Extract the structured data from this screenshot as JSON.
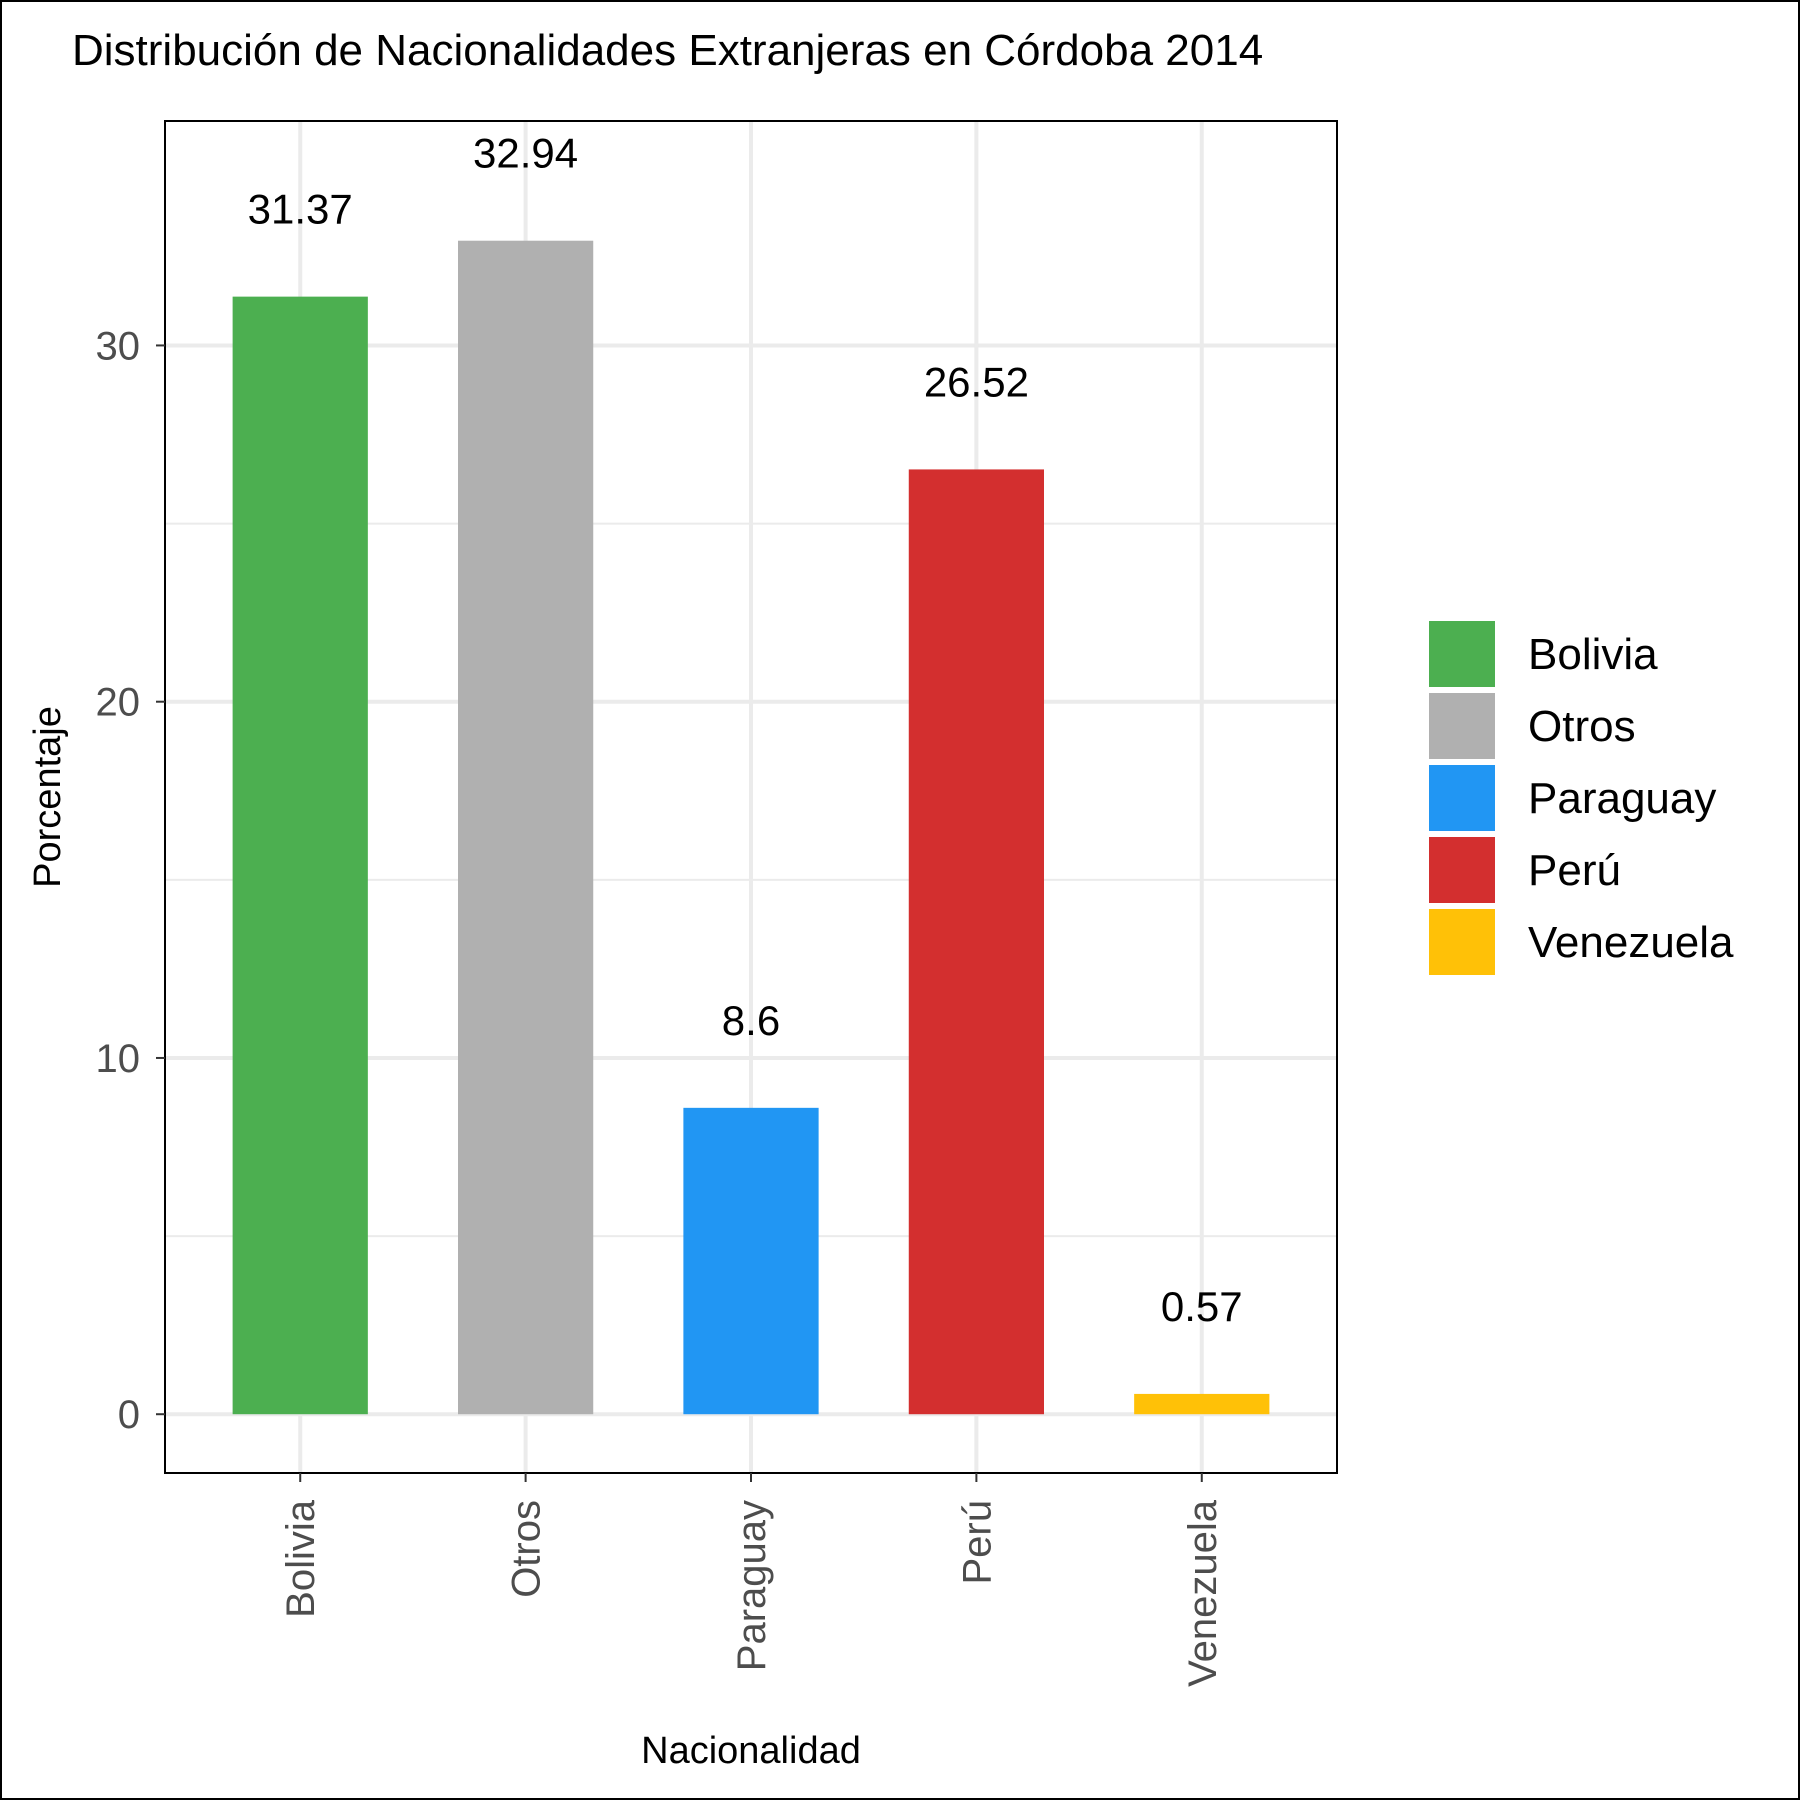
{
  "chart_data": {
    "type": "bar",
    "title": "Distribución de Nacionalidades Extranjeras en Córdoba 2014",
    "xlabel": "Nacionalidad",
    "ylabel": "Porcentaje",
    "categories": [
      "Bolivia",
      "Otros",
      "Paraguay",
      "Perú",
      "Venezuela"
    ],
    "values": [
      31.37,
      32.94,
      8.6,
      26.52,
      0.57
    ],
    "value_labels": [
      "31.37",
      "32.94",
      "8.6",
      "26.52",
      "0.57"
    ],
    "colors": [
      "#4CAF50",
      "#B0B0B0",
      "#2196F3",
      "#D32F2F",
      "#FFC107"
    ],
    "ylim": [
      -1.65,
      36.3
    ],
    "yticks": [
      0,
      10,
      20,
      30
    ],
    "ytick_labels": [
      "0",
      "10",
      "20",
      "30"
    ],
    "grid": true,
    "x_tick_rotation": "vertical",
    "legend": {
      "position": "right",
      "entries": [
        "Bolivia",
        "Otros",
        "Paraguay",
        "Perú",
        "Venezuela"
      ]
    }
  }
}
